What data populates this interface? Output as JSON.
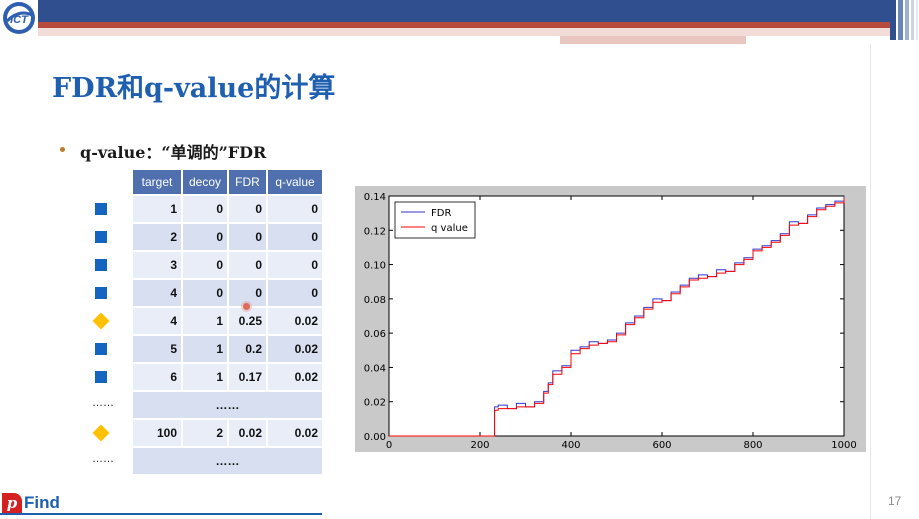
{
  "slide": {
    "title": "FDR和q-value的计算",
    "bullet": "q-value：“单调的”FDR",
    "page_number": "17",
    "footer_logo": "Find",
    "footer_logo_p": "p",
    "logo_text": "ICT"
  },
  "colors": {
    "header_blue": "#2f4f8f",
    "header_red": "#b64a3c",
    "title": "#1f5fb0",
    "table_header": "#4f6fae",
    "target_marker": "#1565c0",
    "decoy_marker": "#ffc000",
    "fdr_line": "#3333cc",
    "qvalue_line": "#ff0000"
  },
  "table": {
    "headers": [
      "target",
      "decoy",
      "FDR",
      "q-value"
    ],
    "ellipsis": "……",
    "rows": [
      {
        "marker": "target",
        "target": "1",
        "decoy": "0",
        "fdr": "0",
        "q": "0"
      },
      {
        "marker": "target",
        "target": "2",
        "decoy": "0",
        "fdr": "0",
        "q": "0"
      },
      {
        "marker": "target",
        "target": "3",
        "decoy": "0",
        "fdr": "0",
        "q": "0"
      },
      {
        "marker": "target",
        "target": "4",
        "decoy": "0",
        "fdr": "0",
        "q": "0"
      },
      {
        "marker": "decoy",
        "target": "4",
        "decoy": "1",
        "fdr": "0.25",
        "q": "0.02"
      },
      {
        "marker": "target",
        "target": "5",
        "decoy": "1",
        "fdr": "0.2",
        "q": "0.02"
      },
      {
        "marker": "target",
        "target": "6",
        "decoy": "1",
        "fdr": "0.17",
        "q": "0.02"
      },
      {
        "marker": "none",
        "ellipsis": "……"
      },
      {
        "marker": "decoy",
        "target": "100",
        "decoy": "2",
        "fdr": "0.02",
        "q": "0.02"
      },
      {
        "marker": "none",
        "ellipsis": "……"
      }
    ]
  },
  "chart_data": {
    "type": "line",
    "title": "",
    "xlabel": "",
    "ylabel": "",
    "xlim": [
      0,
      1000
    ],
    "ylim": [
      0.0,
      0.14
    ],
    "xticks": [
      "0",
      "200",
      "400",
      "600",
      "800",
      "1000"
    ],
    "yticks": [
      "0.00",
      "0.02",
      "0.04",
      "0.06",
      "0.08",
      "0.10",
      "0.12",
      "0.14"
    ],
    "grid": false,
    "legend": "top-left",
    "series": [
      {
        "name": "FDR",
        "color": "#3333cc",
        "x": [
          0,
          230,
          232,
          240,
          260,
          280,
          300,
          320,
          340,
          350,
          360,
          380,
          400,
          420,
          440,
          460,
          480,
          500,
          520,
          540,
          560,
          580,
          600,
          620,
          640,
          660,
          680,
          700,
          720,
          740,
          760,
          780,
          800,
          820,
          840,
          860,
          880,
          900,
          920,
          940,
          960,
          980,
          1000
        ],
        "y": [
          0.0,
          0.0,
          0.017,
          0.018,
          0.016,
          0.019,
          0.017,
          0.02,
          0.026,
          0.031,
          0.038,
          0.041,
          0.05,
          0.052,
          0.055,
          0.054,
          0.056,
          0.06,
          0.066,
          0.07,
          0.075,
          0.08,
          0.079,
          0.084,
          0.088,
          0.092,
          0.094,
          0.093,
          0.097,
          0.096,
          0.101,
          0.104,
          0.109,
          0.111,
          0.114,
          0.118,
          0.125,
          0.124,
          0.129,
          0.133,
          0.135,
          0.137,
          0.14
        ]
      },
      {
        "name": "q value",
        "color": "#ff0000",
        "x": [
          0,
          230,
          232,
          240,
          260,
          280,
          300,
          320,
          340,
          350,
          360,
          380,
          400,
          420,
          440,
          460,
          480,
          500,
          520,
          540,
          560,
          580,
          600,
          620,
          640,
          660,
          680,
          700,
          720,
          740,
          760,
          780,
          800,
          820,
          840,
          860,
          880,
          900,
          920,
          940,
          960,
          980,
          1000
        ],
        "y": [
          0.0,
          0.0,
          0.015,
          0.016,
          0.016,
          0.017,
          0.017,
          0.019,
          0.025,
          0.03,
          0.036,
          0.04,
          0.048,
          0.051,
          0.053,
          0.054,
          0.055,
          0.059,
          0.065,
          0.069,
          0.074,
          0.078,
          0.079,
          0.083,
          0.087,
          0.091,
          0.092,
          0.093,
          0.095,
          0.096,
          0.1,
          0.103,
          0.108,
          0.11,
          0.113,
          0.117,
          0.123,
          0.124,
          0.128,
          0.132,
          0.134,
          0.136,
          0.139
        ]
      }
    ]
  }
}
